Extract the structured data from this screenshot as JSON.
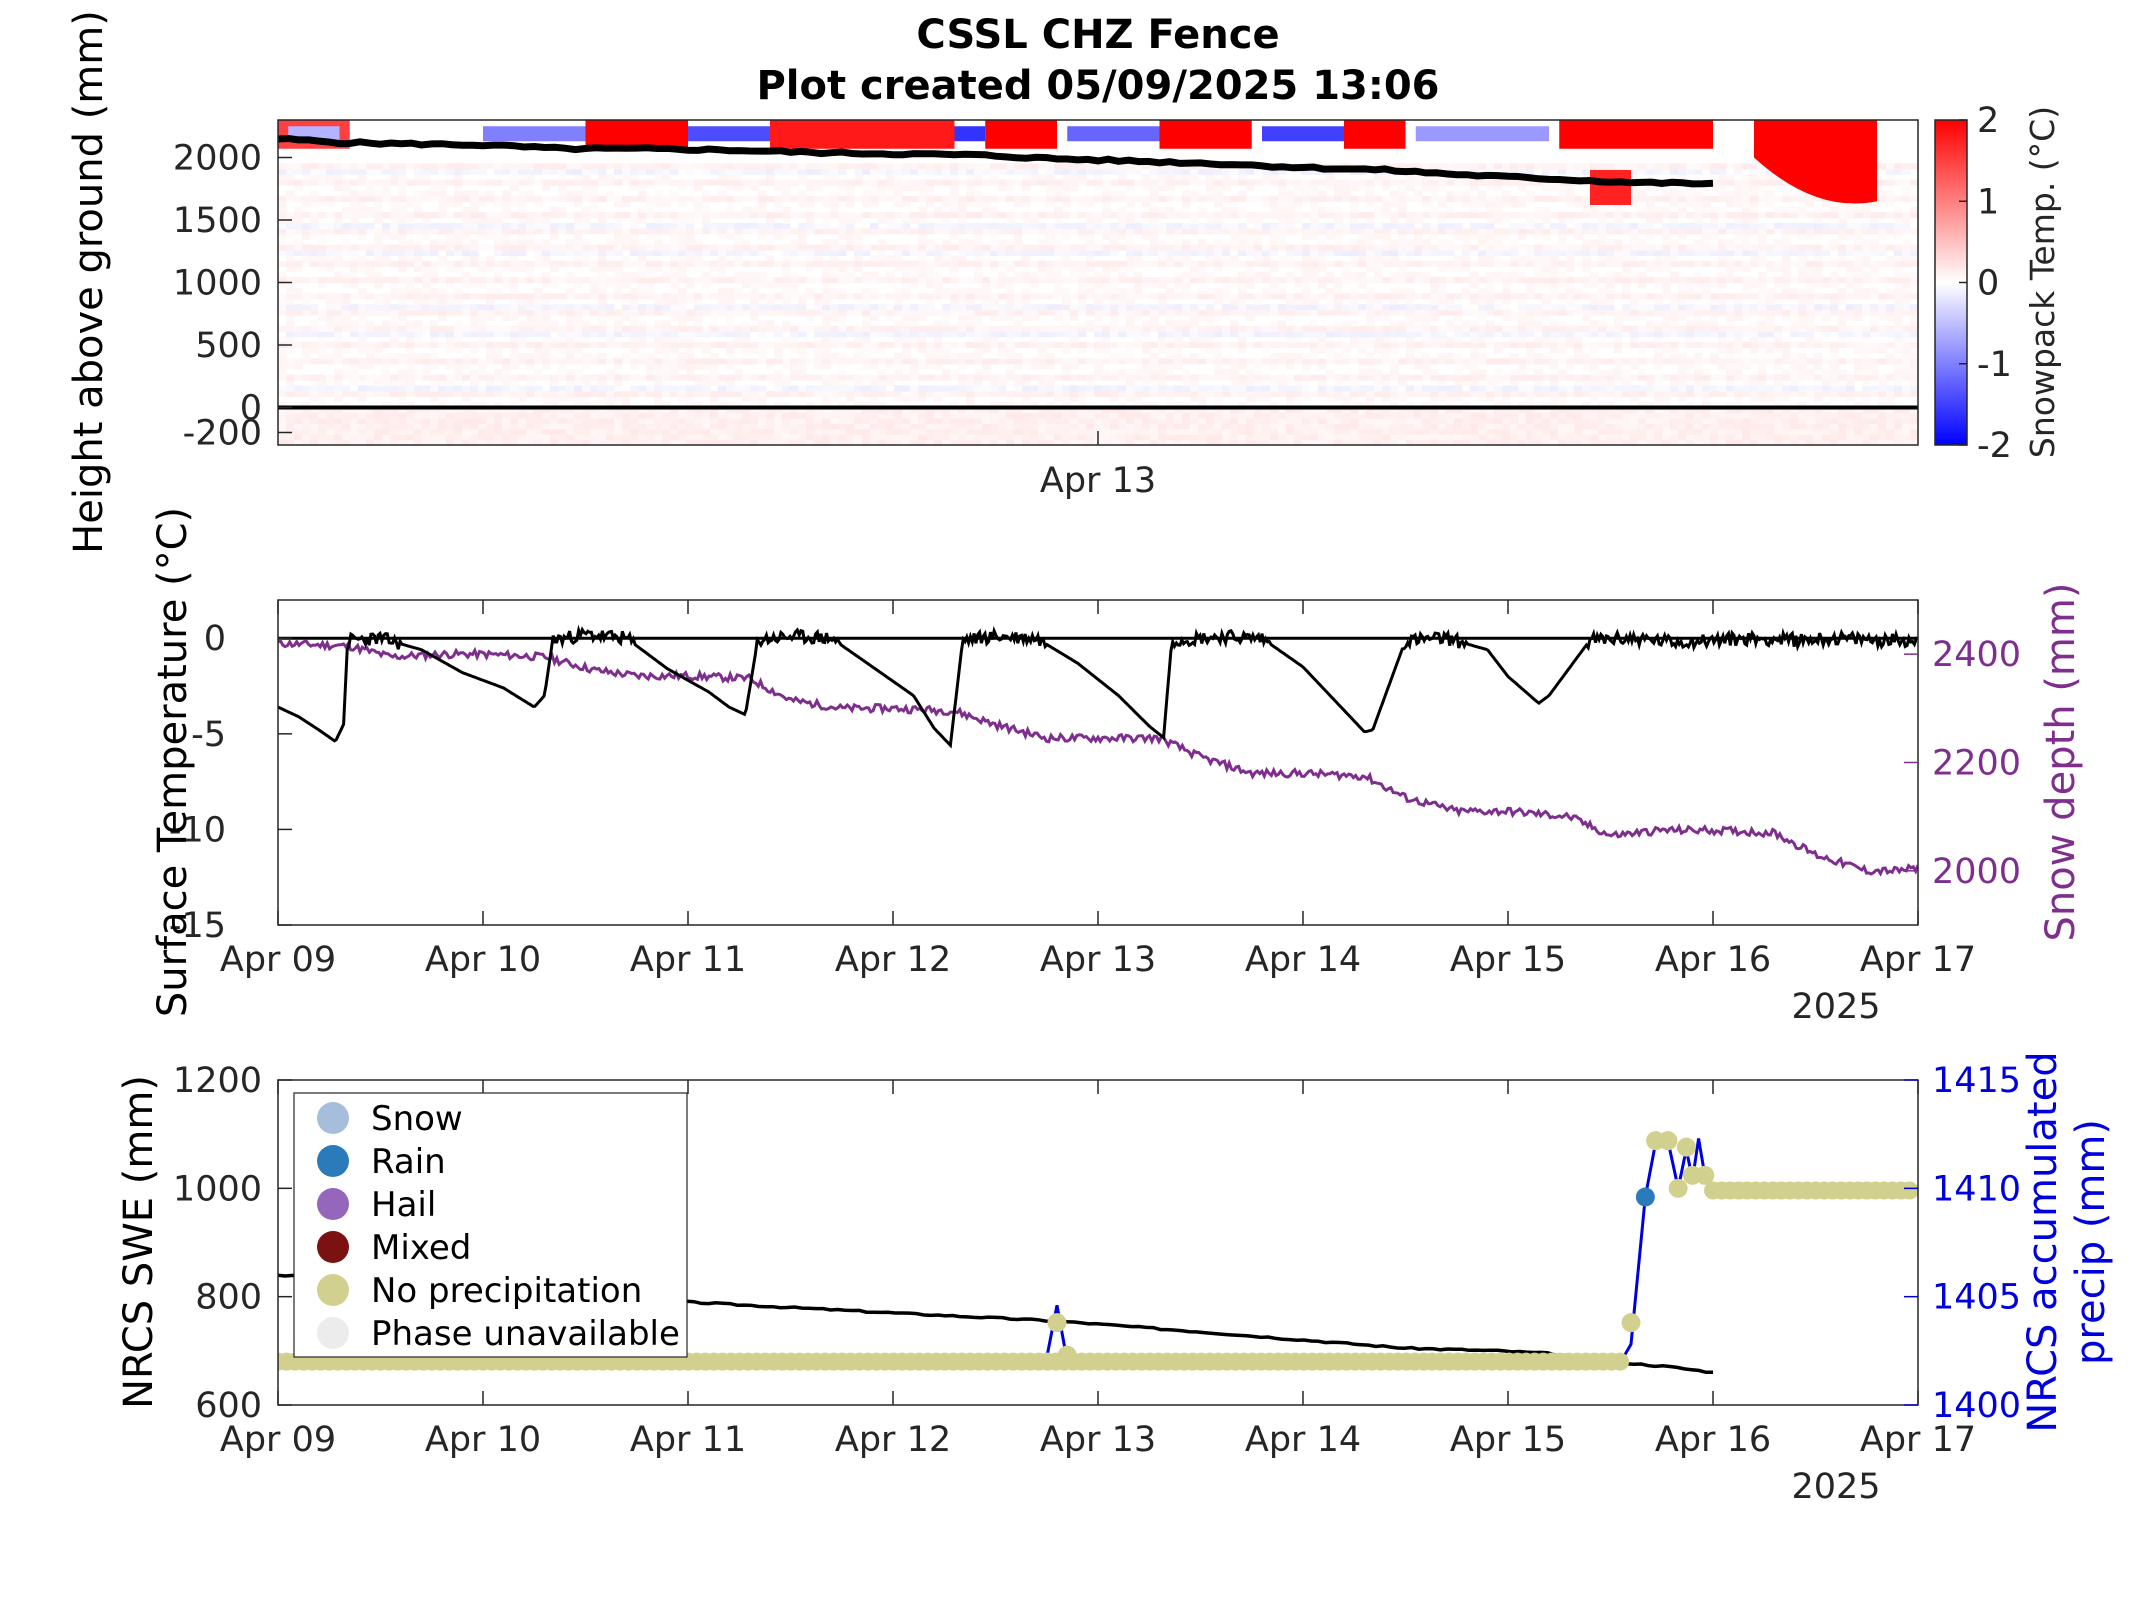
{
  "title": "CSSL CHZ Fence",
  "subtitle": "Plot created 05/09/2025 13:06",
  "colors": {
    "snowpack_cold": "#0000ff",
    "snowpack_warm": "#ff0000",
    "snow_depth": "#7e2f8e",
    "nrcs_precip": "#0000dd",
    "swe": "#000000",
    "snow": "#a6bddb",
    "rain": "#2b7bba",
    "hail": "#9467bd",
    "mixed": "#7b1111",
    "no_precip": "#d2d08e",
    "phase_unavailable": "#ececec"
  },
  "chart_data": [
    {
      "type": "heatmap",
      "ylabel": "Height above ground (mm)",
      "colorbar_label": "Snowpack Temp. (°C)",
      "xlim": [
        "2025-04-09",
        "2025-04-17"
      ],
      "ylim": [
        -300,
        2300
      ],
      "clim": [
        -2,
        2
      ],
      "x_ticks": [
        {
          "value": "2025-04-13",
          "label": "Apr 13"
        }
      ],
      "y_ticks": [
        -200,
        0,
        500,
        1000,
        1500,
        2000
      ],
      "y_tick_labels": [
        "-200",
        "0",
        "500",
        "1000",
        "1500",
        "2000"
      ],
      "colorbar_ticks": [
        -2,
        -1,
        0,
        1,
        2
      ],
      "colorbar_tick_labels": [
        "-2",
        "-1",
        "0",
        "1",
        "2"
      ],
      "reference_line_y": 0,
      "snow_surface": {
        "x_days": [
          0,
          0.3,
          0.6,
          1.0,
          1.4,
          1.8,
          2.2,
          2.6,
          3.0,
          3.4,
          3.8,
          4.2,
          4.6,
          5.0,
          5.4,
          5.8,
          6.2,
          6.6,
          7.0
        ],
        "height_mm": [
          2150,
          2120,
          2110,
          2100,
          2070,
          2070,
          2060,
          2040,
          2030,
          2020,
          1990,
          1970,
          1950,
          1920,
          1900,
          1860,
          1830,
          1800,
          1790
        ]
      },
      "warm_surface_bands": [
        {
          "x0": 0.0,
          "x1": 0.35,
          "level": 1.5
        },
        {
          "x0": 1.5,
          "x1": 2.0,
          "level": 2.0
        },
        {
          "x0": 2.4,
          "x1": 3.3,
          "level": 1.8
        },
        {
          "x0": 3.45,
          "x1": 3.8,
          "level": 2.0
        },
        {
          "x0": 4.3,
          "x1": 4.75,
          "level": 2.0
        },
        {
          "x0": 5.2,
          "x1": 5.5,
          "level": 2.0
        },
        {
          "x0": 6.25,
          "x1": 7.0,
          "level": 2.0
        }
      ],
      "cold_surface_bands": [
        {
          "x0": 0.05,
          "x1": 0.3,
          "level": -0.6
        },
        {
          "x0": 1.0,
          "x1": 1.5,
          "level": -1.0
        },
        {
          "x0": 2.0,
          "x1": 2.4,
          "level": -1.4
        },
        {
          "x0": 3.3,
          "x1": 3.45,
          "level": -1.6
        },
        {
          "x0": 3.85,
          "x1": 4.3,
          "level": -1.2
        },
        {
          "x0": 4.8,
          "x1": 5.2,
          "level": -1.5
        },
        {
          "x0": 5.55,
          "x1": 6.2,
          "level": -0.8
        }
      ]
    },
    {
      "type": "line",
      "ylabel": "Surface Temperature (°C)",
      "y2label": "Snow depth (mm)",
      "xlim": [
        "2025-04-09",
        "2025-04-17"
      ],
      "ylim": [
        -15,
        2
      ],
      "y2lim": [
        1900,
        2500
      ],
      "x_ticks": [
        "Apr 09",
        "Apr 10",
        "Apr 11",
        "Apr 12",
        "Apr 13",
        "Apr 14",
        "Apr 15",
        "Apr 16",
        "Apr 17"
      ],
      "x_year_label": "2025",
      "y_ticks": [
        0,
        -5,
        -10,
        -15
      ],
      "y_tick_labels": [
        "0",
        "-5",
        "-10",
        "-15"
      ],
      "y2_ticks": [
        2000,
        2200,
        2400
      ],
      "y2_tick_labels": [
        "2000",
        "2200",
        "2400"
      ],
      "reference_line_y": 0,
      "series": [
        {
          "axis": "left",
          "x_days": [
            0,
            0.1,
            0.2,
            0.28,
            0.32,
            0.34,
            0.5,
            0.7,
            0.9,
            1.1,
            1.25,
            1.3,
            1.34,
            1.5,
            1.7,
            1.9,
            2.1,
            2.2,
            2.28,
            2.34,
            2.5,
            2.7,
            2.9,
            3.1,
            3.2,
            3.28,
            3.34,
            3.5,
            3.7,
            3.9,
            4.1,
            4.25,
            4.32,
            4.36,
            4.6,
            4.8,
            5.0,
            5.15,
            5.3,
            5.34,
            5.5,
            5.7,
            5.9,
            6.0,
            6.15,
            6.2,
            6.4,
            6.6,
            6.8,
            7.0,
            7.2,
            7.4,
            7.6,
            7.8,
            8.0
          ],
          "values": [
            -3.6,
            -4.1,
            -4.8,
            -5.4,
            -4.5,
            -0.1,
            0.0,
            -0.6,
            -1.8,
            -2.6,
            -3.6,
            -3.0,
            -0.1,
            0.2,
            0.0,
            -1.6,
            -2.8,
            -3.6,
            -4.0,
            -0.1,
            0.1,
            0.0,
            -1.5,
            -3.0,
            -4.7,
            -5.6,
            -0.1,
            0.1,
            0.0,
            -1.3,
            -3.0,
            -4.6,
            -5.2,
            -0.1,
            0.1,
            0.0,
            -1.5,
            -3.2,
            -4.9,
            -4.8,
            -0.1,
            0.0,
            -0.6,
            -2.0,
            -3.4,
            -3.0,
            -0.1,
            0.0,
            -0.2,
            -0.1,
            0.0,
            -0.1,
            0.0,
            -0.1,
            -0.1
          ]
        },
        {
          "name": "Snow depth",
          "axis": "right",
          "x_days": [
            0,
            0.35,
            0.55,
            0.8,
            1.0,
            1.3,
            1.55,
            1.75,
            2.0,
            2.3,
            2.5,
            2.75,
            3.0,
            3.3,
            3.5,
            3.75,
            4.0,
            4.3,
            4.5,
            4.75,
            5.0,
            5.3,
            5.5,
            5.75,
            6.0,
            6.3,
            6.5,
            6.75,
            7.0,
            7.3,
            7.5,
            7.75,
            7.9,
            8.0
          ],
          "values": [
            2420,
            2415,
            2395,
            2400,
            2400,
            2395,
            2370,
            2360,
            2360,
            2355,
            2315,
            2300,
            2300,
            2295,
            2270,
            2245,
            2245,
            2245,
            2210,
            2180,
            2180,
            2175,
            2135,
            2110,
            2110,
            2100,
            2065,
            2075,
            2075,
            2070,
            2030,
            2000,
            2000,
            2005
          ]
        }
      ]
    },
    {
      "type": "line",
      "ylabel": "NRCS SWE (mm)",
      "y2label": "NRCS accumulated precip (mm)",
      "y2label_lines": [
        "NRCS accumulated",
        "precip (mm)"
      ],
      "xlim": [
        "2025-04-09",
        "2025-04-17"
      ],
      "ylim": [
        600,
        1200
      ],
      "y2lim": [
        1400,
        1415
      ],
      "x_ticks": [
        "Apr 09",
        "Apr 10",
        "Apr 11",
        "Apr 12",
        "Apr 13",
        "Apr 14",
        "Apr 15",
        "Apr 16",
        "Apr 17"
      ],
      "x_year_label": "2025",
      "y_ticks": [
        600,
        800,
        1000,
        1200
      ],
      "y_tick_labels": [
        "600",
        "800",
        "1000",
        "1200"
      ],
      "y2_ticks": [
        1400,
        1405,
        1410,
        1415
      ],
      "y2_tick_labels": [
        "1400",
        "1405",
        "1410",
        "1415"
      ],
      "swe": {
        "x_days": [
          0,
          1.0,
          2.0,
          3.0,
          3.8,
          4.5,
          5.0,
          5.5,
          5.95,
          6.2,
          6.5,
          6.65,
          6.8,
          7.0
        ],
        "values": [
          840,
          810,
          790,
          770,
          755,
          735,
          720,
          705,
          700,
          695,
          680,
          675,
          670,
          660
        ]
      },
      "precip_line": {
        "x_days": [
          0,
          3.7,
          3.75,
          3.8,
          3.85,
          6.55,
          6.6,
          6.67,
          6.72,
          6.78,
          6.83,
          6.87,
          6.9,
          6.93,
          6.96,
          7.0,
          8.0
        ],
        "values": [
          1402,
          1402,
          1402.2,
          1404.6,
          1402,
          1402,
          1402.8,
          1409.6,
          1412.1,
          1412.2,
          1410,
          1411.8,
          1410.4,
          1412.3,
          1410.6,
          1409.9,
          1409.9
        ]
      },
      "precip_markers": [
        {
          "x_days": 3.8,
          "value": 1403.8,
          "phase": "no_precip"
        },
        {
          "x_days": 3.85,
          "value": 1402.3,
          "phase": "no_precip"
        },
        {
          "x_days": 6.6,
          "value": 1403.8,
          "phase": "no_precip"
        },
        {
          "x_days": 6.67,
          "value": 1409.6,
          "phase": "rain"
        },
        {
          "x_days": 6.72,
          "value": 1412.2,
          "phase": "no_precip"
        },
        {
          "x_days": 6.78,
          "value": 1412.2,
          "phase": "no_precip"
        },
        {
          "x_days": 6.83,
          "value": 1410.0,
          "phase": "no_precip"
        },
        {
          "x_days": 6.87,
          "value": 1411.9,
          "phase": "no_precip"
        },
        {
          "x_days": 6.9,
          "value": 1410.6,
          "phase": "no_precip"
        },
        {
          "x_days": 6.96,
          "value": 1410.6,
          "phase": "no_precip"
        }
      ],
      "baseline_markers": {
        "value": 1402,
        "x_from_days": 0,
        "x_to_days": 6.55,
        "step_days": 0.0417,
        "phase": "no_precip"
      },
      "late_markers": {
        "value": 1409.9,
        "x_from_days": 7.0,
        "x_to_days": 8.0,
        "step_days": 0.0417,
        "phase": "no_precip"
      },
      "legend": {
        "location": "upper-left",
        "entries": [
          {
            "label": "Snow",
            "color_key": "snow"
          },
          {
            "label": "Rain",
            "color_key": "rain"
          },
          {
            "label": "Hail",
            "color_key": "hail"
          },
          {
            "label": "Mixed",
            "color_key": "mixed"
          },
          {
            "label": "No precipitation",
            "color_key": "no_precip"
          },
          {
            "label": "Phase unavailable",
            "color_key": "phase_unavailable"
          }
        ]
      }
    }
  ]
}
